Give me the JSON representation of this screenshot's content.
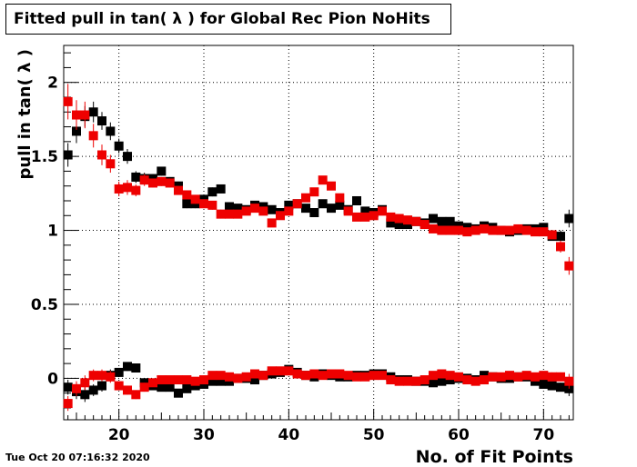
{
  "title": "Fitted pull in tan( λ ) for Global Rec Pion NoHits",
  "timestamp": "Tue Oct 20 07:16:32 2020",
  "colors": {
    "black_series": "#000000",
    "red_series": "#ee0000",
    "axis": "#000000"
  },
  "chart_data": {
    "type": "scatter",
    "title": "Fitted pull in tan( λ ) for Global Rec Pion NoHits",
    "xlabel": "No. of Fit Points",
    "ylabel": "pull in tan( λ )",
    "xlim": [
      13.5,
      73.5
    ],
    "ylim": [
      -0.28,
      2.25
    ],
    "grid": true,
    "x_ticks": [
      "20",
      "30",
      "40",
      "50",
      "60",
      "70"
    ],
    "y_ticks": [
      "0",
      "0.5",
      "1",
      "1.5",
      "2"
    ],
    "x": [
      14,
      15,
      16,
      17,
      18,
      19,
      20,
      21,
      22,
      23,
      24,
      25,
      26,
      27,
      28,
      29,
      30,
      31,
      32,
      33,
      34,
      35,
      36,
      37,
      38,
      39,
      40,
      41,
      42,
      43,
      44,
      45,
      46,
      47,
      48,
      49,
      50,
      51,
      52,
      53,
      54,
      55,
      56,
      57,
      58,
      59,
      60,
      61,
      62,
      63,
      64,
      65,
      66,
      67,
      68,
      69,
      70,
      71,
      72,
      73
    ],
    "series": [
      {
        "values": [
          1.51,
          1.67,
          1.77,
          1.8,
          1.74,
          1.67,
          1.57,
          1.5,
          1.36,
          1.35,
          1.35,
          1.4,
          1.33,
          1.3,
          1.18,
          1.18,
          1.21,
          1.26,
          1.28,
          1.16,
          1.15,
          1.14,
          1.17,
          1.16,
          1.14,
          1.12,
          1.17,
          1.18,
          1.15,
          1.12,
          1.18,
          1.15,
          1.17,
          1.14,
          1.2,
          1.13,
          1.12,
          1.14,
          1.05,
          1.04,
          1.04,
          1.06,
          1.05,
          1.08,
          1.06,
          1.06,
          1.03,
          1.02,
          1.01,
          1.03,
          1.02,
          1.0,
          0.99,
          1.0,
          1.01,
          1.01,
          1.02,
          0.96,
          0.96,
          1.08
        ]
      },
      {
        "values": [
          -0.06,
          -0.09,
          -0.11,
          -0.08,
          -0.05,
          0.02,
          0.04,
          0.08,
          0.07,
          -0.03,
          -0.05,
          -0.06,
          -0.06,
          -0.1,
          -0.07,
          -0.05,
          -0.04,
          -0.02,
          -0.02,
          -0.02,
          0.0,
          0.0,
          -0.01,
          0.02,
          0.03,
          0.04,
          0.06,
          0.04,
          0.02,
          0.01,
          0.03,
          0.02,
          0.01,
          0.01,
          0.02,
          0.02,
          0.03,
          0.03,
          0.01,
          -0.01,
          -0.01,
          -0.02,
          -0.02,
          -0.03,
          -0.02,
          -0.01,
          0.0,
          0.0,
          -0.01,
          0.02,
          0.01,
          0.0,
          0.0,
          0.01,
          0.01,
          -0.02,
          -0.04,
          -0.05,
          -0.06,
          -0.07
        ]
      },
      {
        "values": [
          1.87,
          1.78,
          1.78,
          1.64,
          1.51,
          1.45,
          1.28,
          1.29,
          1.27,
          1.34,
          1.32,
          1.33,
          1.32,
          1.27,
          1.24,
          1.21,
          1.18,
          1.17,
          1.11,
          1.11,
          1.11,
          1.13,
          1.15,
          1.13,
          1.05,
          1.1,
          1.13,
          1.18,
          1.22,
          1.26,
          1.34,
          1.3,
          1.22,
          1.13,
          1.09,
          1.09,
          1.1,
          1.13,
          1.09,
          1.08,
          1.07,
          1.06,
          1.04,
          1.01,
          1.0,
          1.0,
          1.0,
          0.99,
          1.0,
          1.01,
          1.0,
          1.0,
          1.0,
          1.01,
          1.0,
          0.99,
          0.99,
          0.97,
          0.89,
          0.76
        ]
      },
      {
        "values": [
          -0.17,
          -0.07,
          -0.03,
          0.02,
          0.02,
          0.01,
          -0.05,
          -0.08,
          -0.11,
          -0.06,
          -0.03,
          -0.01,
          -0.01,
          -0.01,
          -0.01,
          -0.02,
          -0.01,
          0.02,
          0.02,
          0.01,
          0.0,
          0.01,
          0.03,
          0.02,
          0.05,
          0.05,
          0.05,
          0.03,
          0.02,
          0.03,
          0.02,
          0.03,
          0.03,
          0.02,
          0.01,
          0.01,
          0.02,
          0.02,
          -0.01,
          -0.02,
          -0.02,
          -0.02,
          -0.01,
          0.02,
          0.03,
          0.02,
          0.01,
          -0.01,
          -0.02,
          -0.01,
          0.01,
          0.01,
          0.02,
          0.01,
          0.02,
          0.01,
          0.02,
          0.01,
          0.01,
          -0.02
        ]
      }
    ],
    "errors": [
      [
        0.08,
        0.08,
        0.07,
        0.07,
        0.06,
        0.06,
        0.05,
        0.05,
        0.04,
        0.04,
        0.03,
        0.03,
        0.03,
        0.03,
        0.03,
        0.03,
        0.03,
        0.03,
        0.03,
        0.02,
        0.02,
        0.02,
        0.02,
        0.02,
        0.02,
        0.02,
        0.02,
        0.02,
        0.02,
        0.02,
        0.02,
        0.02,
        0.02,
        0.02,
        0.02,
        0.02,
        0.02,
        0.02,
        0.02,
        0.02,
        0.02,
        0.02,
        0.02,
        0.02,
        0.02,
        0.02,
        0.02,
        0.02,
        0.02,
        0.02,
        0.02,
        0.02,
        0.02,
        0.02,
        0.02,
        0.02,
        0.03,
        0.03,
        0.04,
        0.06
      ],
      [
        0.05,
        0.05,
        0.05,
        0.04,
        0.04,
        0.04,
        0.03,
        0.03,
        0.03,
        0.03,
        0.02,
        0.02,
        0.02,
        0.02,
        0.02,
        0.02,
        0.02,
        0.02,
        0.02,
        0.02,
        0.02,
        0.02,
        0.02,
        0.02,
        0.02,
        0.02,
        0.02,
        0.02,
        0.02,
        0.02,
        0.02,
        0.02,
        0.02,
        0.02,
        0.02,
        0.02,
        0.02,
        0.02,
        0.02,
        0.02,
        0.02,
        0.02,
        0.02,
        0.02,
        0.02,
        0.02,
        0.02,
        0.02,
        0.02,
        0.02,
        0.02,
        0.02,
        0.02,
        0.02,
        0.02,
        0.02,
        0.02,
        0.03,
        0.03,
        0.05
      ],
      [
        0.12,
        0.1,
        0.09,
        0.08,
        0.07,
        0.06,
        0.05,
        0.05,
        0.04,
        0.04,
        0.03,
        0.03,
        0.03,
        0.03,
        0.03,
        0.03,
        0.03,
        0.03,
        0.03,
        0.02,
        0.02,
        0.02,
        0.02,
        0.02,
        0.02,
        0.02,
        0.02,
        0.02,
        0.02,
        0.02,
        0.02,
        0.02,
        0.02,
        0.02,
        0.02,
        0.02,
        0.02,
        0.02,
        0.02,
        0.02,
        0.02,
        0.02,
        0.02,
        0.02,
        0.02,
        0.02,
        0.02,
        0.02,
        0.02,
        0.02,
        0.02,
        0.02,
        0.02,
        0.02,
        0.02,
        0.02,
        0.02,
        0.03,
        0.04,
        0.06
      ],
      [
        0.05,
        0.05,
        0.05,
        0.04,
        0.04,
        0.04,
        0.03,
        0.03,
        0.03,
        0.03,
        0.02,
        0.02,
        0.02,
        0.02,
        0.02,
        0.02,
        0.02,
        0.02,
        0.02,
        0.02,
        0.02,
        0.02,
        0.02,
        0.02,
        0.02,
        0.02,
        0.02,
        0.02,
        0.02,
        0.02,
        0.02,
        0.02,
        0.02,
        0.02,
        0.02,
        0.02,
        0.02,
        0.02,
        0.02,
        0.02,
        0.02,
        0.02,
        0.02,
        0.02,
        0.02,
        0.02,
        0.02,
        0.02,
        0.02,
        0.02,
        0.02,
        0.02,
        0.02,
        0.02,
        0.02,
        0.02,
        0.02,
        0.03,
        0.03,
        0.05
      ]
    ],
    "series_colors": [
      "#000000",
      "#000000",
      "#ee0000",
      "#ee0000"
    ]
  }
}
